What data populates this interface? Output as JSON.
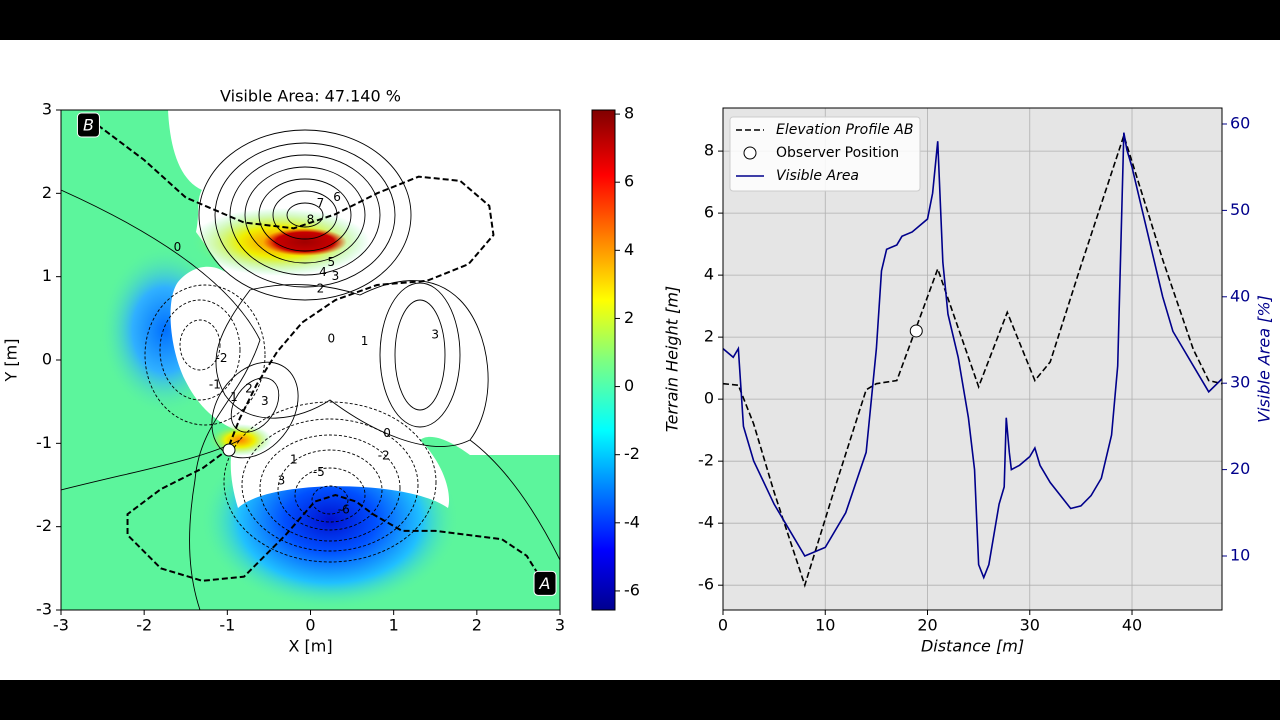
{
  "chart_data": [
    {
      "type": "heatmap",
      "title": "Visible Area: 47.140 %",
      "xlabel": "X [m]",
      "ylabel": "Y [m]",
      "xlim": [
        -3,
        3
      ],
      "ylim": [
        -3,
        3
      ],
      "xticks": [
        -3,
        -2,
        -1,
        0,
        1,
        2,
        3
      ],
      "yticks": [
        -3,
        -2,
        -1,
        0,
        1,
        2,
        3
      ],
      "colorbar": {
        "lim": [
          -6.56,
          8.12
        ],
        "ticks": [
          -6,
          -4,
          -2,
          0,
          2,
          4,
          6,
          8
        ]
      },
      "path": {
        "x": [
          2.85,
          2.6,
          2.3,
          1.9,
          1.5,
          1.1,
          0.75,
          0.55,
          0.3,
          0.05,
          -0.3,
          -0.8,
          -1.3,
          -1.8,
          -2.2,
          -2.2,
          -1.8,
          -1.3,
          -1.0,
          -0.85,
          -0.65,
          -0.4,
          -0.1,
          0.3,
          0.8,
          1.4,
          1.9,
          2.2,
          2.15,
          1.8,
          1.3,
          0.8,
          0.3,
          -0.2,
          -0.8,
          -1.5,
          -2.0,
          -2.6
        ],
        "y": [
          -2.75,
          -2.35,
          -2.15,
          -2.1,
          -2.05,
          -2.05,
          -1.85,
          -1.7,
          -1.62,
          -1.7,
          -2.1,
          -2.6,
          -2.65,
          -2.5,
          -2.1,
          -1.85,
          -1.55,
          -1.3,
          -1.08,
          -0.7,
          -0.3,
          0.1,
          0.45,
          0.72,
          0.9,
          0.95,
          1.15,
          1.5,
          1.85,
          2.15,
          2.2,
          2.0,
          1.75,
          1.58,
          1.65,
          1.95,
          2.4,
          2.85
        ]
      },
      "observer": {
        "x": -0.98,
        "y": -1.08
      },
      "point_labels": [
        {
          "text": "A",
          "x": 2.82,
          "y": -2.68
        },
        {
          "text": "B",
          "x": -2.67,
          "y": 2.82
        }
      ],
      "contour_labels": [
        {
          "level": 8,
          "x": 0.0,
          "y": 1.68
        },
        {
          "level": 7,
          "x": 0.12,
          "y": 1.88
        },
        {
          "level": 6,
          "x": 0.32,
          "y": 1.95
        },
        {
          "level": 5,
          "x": 0.25,
          "y": 1.17
        },
        {
          "level": 4,
          "x": 0.15,
          "y": 1.05
        },
        {
          "level": 3,
          "x": 0.3,
          "y": 1.0
        },
        {
          "level": 2,
          "x": 0.12,
          "y": 0.85
        },
        {
          "level": 0,
          "x": -1.6,
          "y": 1.35
        },
        {
          "level": 0,
          "x": 0.25,
          "y": 0.25
        },
        {
          "level": 1,
          "x": 0.65,
          "y": 0.22
        },
        {
          "level": 3,
          "x": 1.5,
          "y": 0.3
        },
        {
          "level": -2,
          "x": -1.07,
          "y": 0.02
        },
        {
          "level": -1,
          "x": -1.15,
          "y": -0.3
        },
        {
          "level": 1,
          "x": -0.92,
          "y": -0.45
        },
        {
          "level": 2,
          "x": -0.74,
          "y": -0.35
        },
        {
          "level": 3,
          "x": -0.55,
          "y": -0.5
        },
        {
          "level": 1,
          "x": -0.2,
          "y": -1.2
        },
        {
          "level": 0,
          "x": 0.92,
          "y": -0.88
        },
        {
          "level": -2,
          "x": 0.88,
          "y": -1.15
        },
        {
          "level": 3,
          "x": -0.35,
          "y": -1.45
        },
        {
          "level": -5,
          "x": 0.1,
          "y": -1.35
        },
        {
          "level": -6,
          "x": 0.4,
          "y": -1.8
        }
      ]
    },
    {
      "type": "line",
      "xlabel": "Distance [m]",
      "ylabel": "Terrain Height [m]",
      "y2label": "Visible Area [%]",
      "xlim": [
        0,
        48.8
      ],
      "ylim": [
        -6.8,
        9.39
      ],
      "y2lim": [
        3.75,
        61.85
      ],
      "xticks": [
        0,
        10,
        20,
        30,
        40
      ],
      "yticks": [
        -6,
        -4,
        -2,
        0,
        2,
        4,
        6,
        8
      ],
      "y2ticks": [
        10,
        20,
        30,
        40,
        50,
        60
      ],
      "grid": true,
      "legend": "upper left",
      "series": [
        {
          "name": "Elevation Profile AB",
          "color": "#000000",
          "style": "dashed",
          "x": [
            0,
            1.5,
            3,
            5,
            8,
            11,
            14,
            15,
            17,
            19,
            21,
            23,
            25,
            27.8,
            30.5,
            32,
            35,
            39.2,
            43,
            46,
            47.5,
            48.8
          ],
          "values": [
            0.5,
            0.45,
            -0.8,
            -3.0,
            -6.0,
            -2.8,
            0.3,
            0.5,
            0.6,
            2.4,
            4.2,
            2.3,
            0.4,
            2.8,
            0.6,
            1.2,
            4.3,
            8.5,
            4.5,
            1.6,
            0.6,
            0.5
          ]
        },
        {
          "name": "Observer Position",
          "type": "scatter",
          "color": "#ffffff",
          "x": [
            18.9
          ],
          "values": [
            2.2
          ]
        },
        {
          "name": "Visible Area",
          "color": "#00008b",
          "axis": "y2",
          "x": [
            0,
            1,
            1.5,
            2,
            3,
            5,
            7,
            8,
            10,
            12,
            14,
            15,
            15.5,
            16,
            17,
            17.5,
            18.5,
            20,
            20.5,
            21,
            21.5,
            22,
            23,
            24,
            24.6,
            25,
            25.5,
            26,
            27,
            27.5,
            27.7,
            28,
            28.2,
            29,
            30,
            30.5,
            31,
            32,
            33,
            34,
            35,
            36,
            37,
            38,
            38.6,
            39,
            39.2,
            39.5,
            40,
            41,
            42,
            43,
            44,
            45,
            46,
            47,
            47.5,
            48.8
          ],
          "values": [
            34,
            33,
            34,
            25,
            21,
            16,
            12,
            10,
            11,
            15,
            22,
            34,
            43,
            45.5,
            46,
            47,
            47.5,
            49,
            52,
            58,
            44,
            38,
            33,
            26,
            20,
            9,
            7.5,
            9,
            16,
            18,
            26,
            22,
            20,
            20.5,
            21.5,
            22.5,
            20.5,
            18.5,
            17,
            15.5,
            15.8,
            17,
            19,
            24,
            32,
            50,
            59,
            57,
            55,
            50,
            45,
            40,
            36,
            34,
            32,
            30,
            29,
            30.5
          ]
        }
      ]
    }
  ]
}
